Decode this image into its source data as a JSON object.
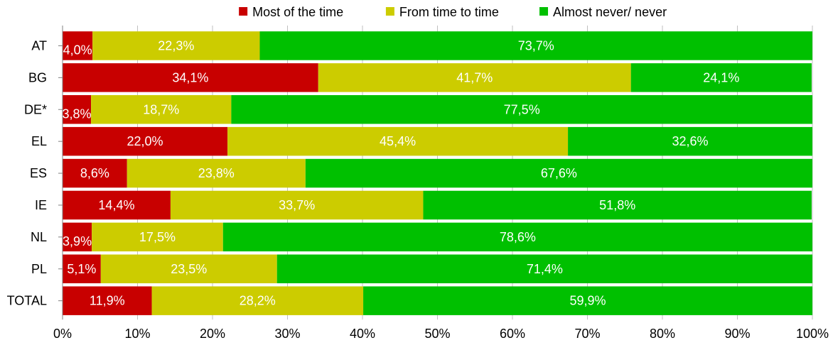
{
  "chart_data": {
    "type": "bar",
    "orientation": "horizontal",
    "stacked": true,
    "categories": [
      "AT",
      "BG",
      "DE*",
      "EL",
      "ES",
      "IE",
      "NL",
      "PL",
      "TOTAL"
    ],
    "series": [
      {
        "name": "Most of the time",
        "color": "#c80000",
        "values": [
          4.0,
          34.1,
          3.8,
          22.0,
          8.6,
          14.4,
          3.9,
          5.1,
          11.9
        ],
        "labels": [
          "4,0%",
          "34,1%",
          "3,8%",
          "22,0%",
          "8,6%",
          "14,4%",
          "3,9%",
          "5,1%",
          "11,9%"
        ]
      },
      {
        "name": "From time to time",
        "color": "#cccc00",
        "values": [
          22.3,
          41.7,
          18.7,
          45.4,
          23.8,
          33.7,
          17.5,
          23.5,
          28.2
        ],
        "labels": [
          "22,3%",
          "41,7%",
          "18,7%",
          "45,4%",
          "23,8%",
          "33,7%",
          "17,5%",
          "23,5%",
          "28,2%"
        ]
      },
      {
        "name": "Almost never/ never",
        "color": "#00c000",
        "values": [
          73.7,
          24.1,
          77.5,
          32.6,
          67.6,
          51.8,
          78.6,
          71.4,
          59.9
        ],
        "labels": [
          "73,7%",
          "24,1%",
          "77,5%",
          "32,6%",
          "67,6%",
          "51,8%",
          "78,6%",
          "71,4%",
          "59,9%"
        ]
      }
    ],
    "xlim": [
      0,
      100
    ],
    "x_ticks": [
      "0%",
      "10%",
      "20%",
      "30%",
      "40%",
      "50%",
      "60%",
      "70%",
      "80%",
      "90%",
      "100%"
    ],
    "grid": "vertical",
    "legend_position": "top",
    "title": "",
    "xlabel": "",
    "ylabel": ""
  }
}
